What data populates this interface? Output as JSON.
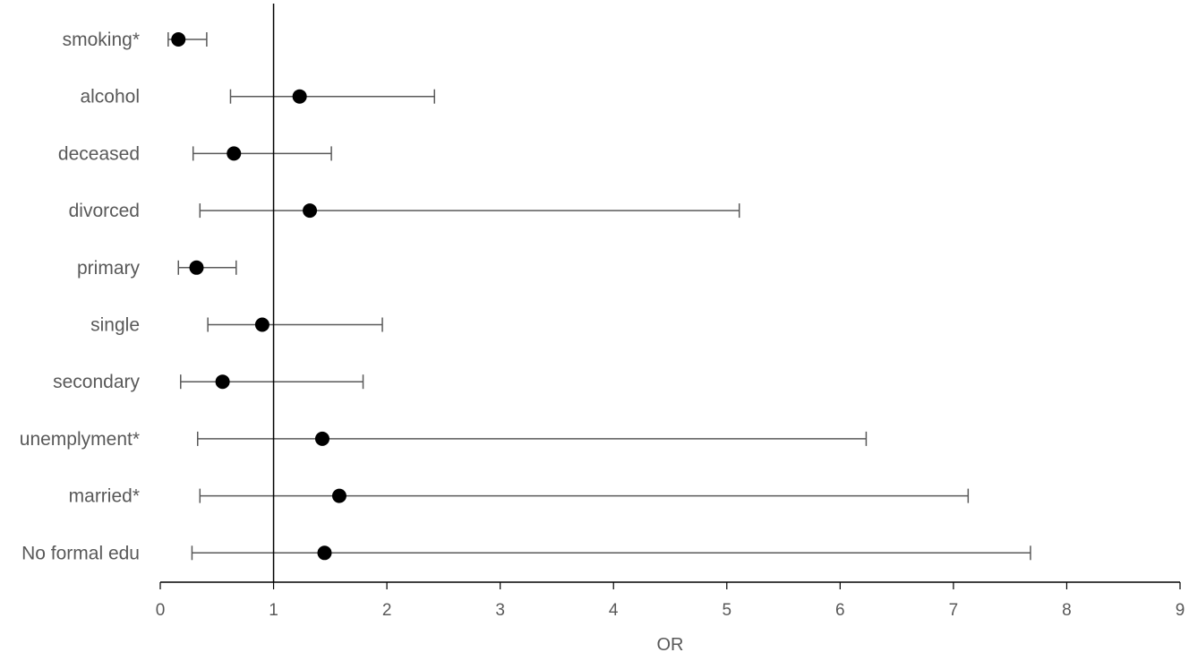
{
  "chart_data": {
    "type": "scatter",
    "subtype": "forest-plot",
    "title": "",
    "xlabel": "OR",
    "ylabel": "",
    "xlim": [
      0,
      9
    ],
    "x_ticks": [
      0,
      1,
      2,
      3,
      4,
      5,
      6,
      7,
      8,
      9
    ],
    "reference_line_x": 1,
    "grid": false,
    "legend": "none",
    "point_color": "#000000",
    "error_bar_color": "#595959",
    "categories": [
      "smoking*",
      "alcohol",
      "deceased",
      "divorced",
      "primary",
      "single",
      "secondary",
      "unemplyment*",
      "married*",
      "No formal edu"
    ],
    "series": [
      {
        "or": [
          0.16,
          1.23,
          0.65,
          1.32,
          0.32,
          0.9,
          0.55,
          1.43,
          1.58,
          1.45
        ],
        "lower": [
          0.07,
          0.62,
          0.29,
          0.35,
          0.16,
          0.42,
          0.18,
          0.33,
          0.35,
          0.28
        ],
        "upper": [
          0.41,
          2.42,
          1.51,
          5.11,
          0.67,
          1.96,
          1.79,
          6.23,
          7.13,
          7.68
        ]
      }
    ]
  }
}
